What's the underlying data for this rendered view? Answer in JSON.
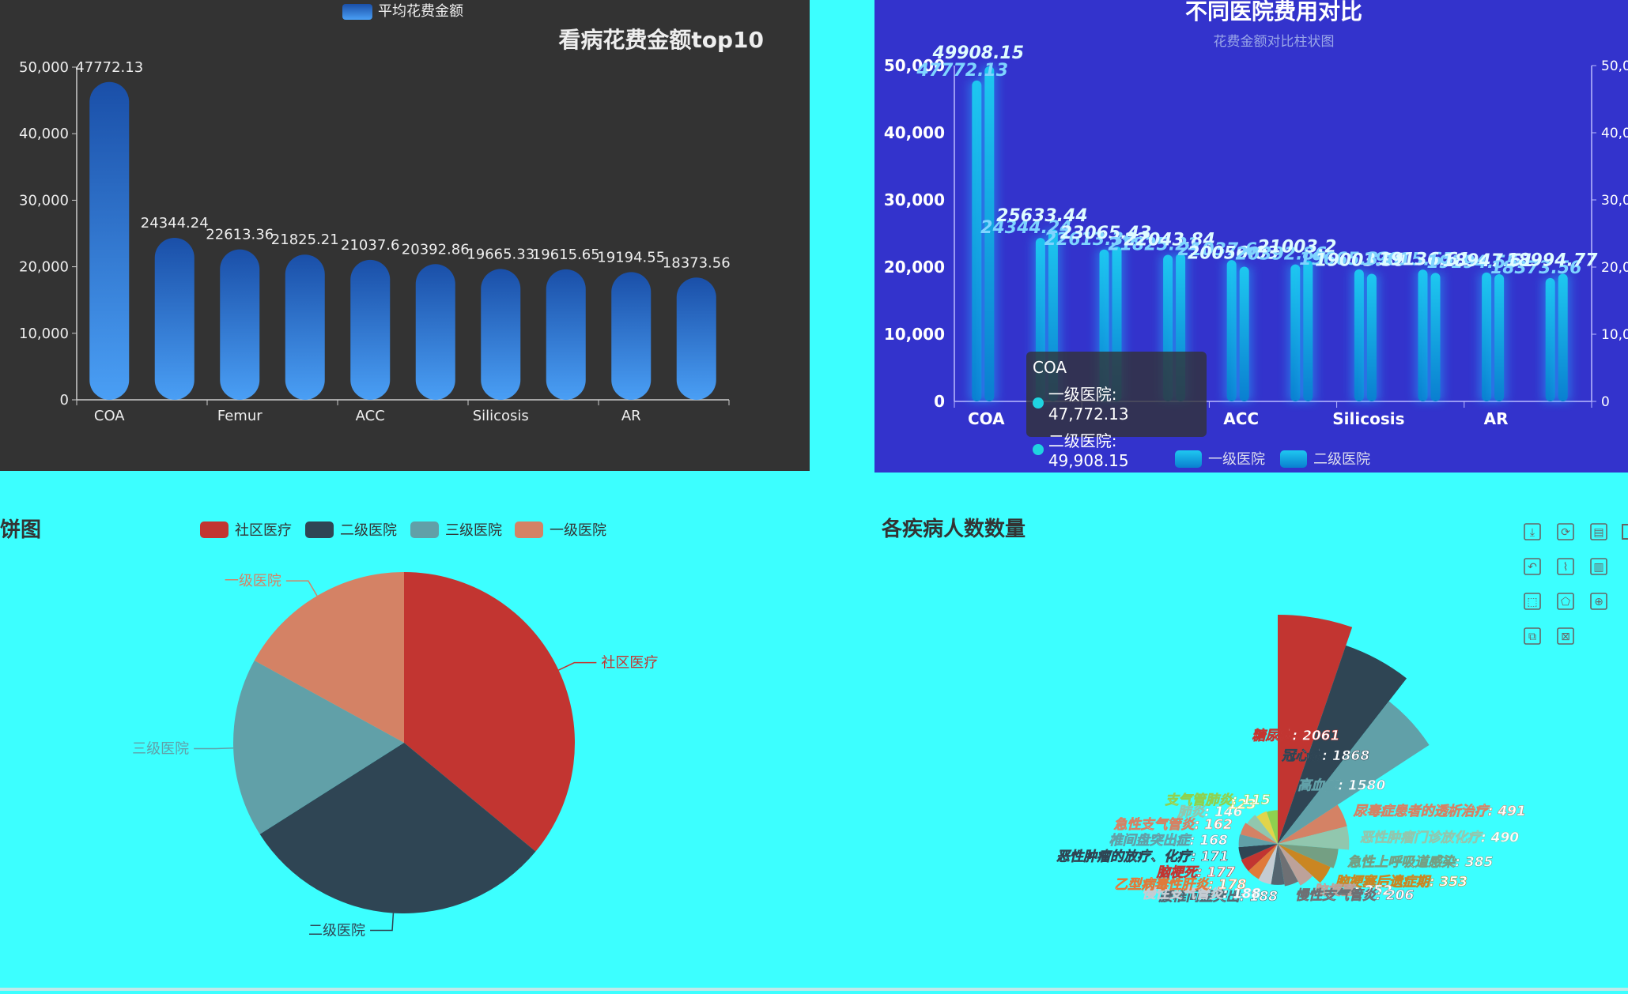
{
  "panel1": {
    "title": "看病花费金额top10",
    "legend": "平均花费金额",
    "chart_data": {
      "type": "bar",
      "categories": [
        "COA",
        "",
        "Femur",
        "",
        "ACC",
        "",
        "Silicosis",
        "",
        "AR",
        ""
      ],
      "values": [
        47772.13,
        24344.24,
        22613.36,
        21825.21,
        21037.6,
        20392.86,
        19665.33,
        19615.65,
        19194.55,
        18373.56
      ],
      "labels": [
        "47772.13",
        "24344.24",
        "22613.36",
        "21825.21",
        "21037.6",
        "20392.86",
        "19665.33",
        "19615.65",
        "19194.55",
        "18373.56"
      ],
      "ylim": [
        0,
        50000
      ],
      "yticks": [
        "0",
        "10,000",
        "20,000",
        "30,000",
        "40,000",
        "50,000"
      ],
      "colors": {
        "top": "#1a4fa8",
        "bottom": "#4a9ff5"
      }
    }
  },
  "panel2": {
    "title": "不同医院费用对比",
    "subtitle": "花费金额对比柱状图",
    "legend": [
      "一级医院",
      "二级医院"
    ],
    "chart_data": {
      "type": "bar",
      "categories": [
        "COA",
        "",
        "",
        "",
        "ACC",
        "",
        "Silicosis",
        "",
        "AR",
        ""
      ],
      "series": [
        {
          "name": "一级医院",
          "values": [
            47772.13,
            24344.24,
            22613.36,
            21825.21,
            21037.6,
            20392.86,
            19665.33,
            19615.65,
            19194.55,
            18373.56
          ]
        },
        {
          "name": "二级医院",
          "values": [
            49908.15,
            25633.44,
            23065.43,
            22043.84,
            20056.03,
            21003.2,
            19003.39,
            19136.61,
            18947.51,
            18994.77
          ]
        }
      ],
      "labels1": [
        "47772.13",
        "24344.24",
        "22613.36",
        "21825.21",
        "21037.6",
        "20392.86",
        "19665.33",
        "19615.65",
        "19194.55",
        "18373.56"
      ],
      "labels2": [
        "49908.15",
        "25633.44",
        "23065.43",
        "22043.84",
        "20056.03",
        "21003.2",
        "19003.39",
        "19136.61",
        "18947.51",
        "18994.77"
      ],
      "ylim": [
        0,
        50000
      ],
      "yticks": [
        "0",
        "10,000",
        "20,000",
        "30,000",
        "40,000",
        "50,000"
      ],
      "yticks_right": [
        "0",
        "10,0",
        "20,0",
        "30,0",
        "40,0",
        "50,0"
      ],
      "colors": {
        "bar": "#1ec8f0",
        "bar_dark": "#0a7fd0",
        "label1": "#7fd4ff",
        "label2": "#dffcff"
      }
    },
    "tooltip": {
      "title": "COA",
      "row1": "一级医院: 47,772.13",
      "row2": "二级医院: 49,908.15"
    }
  },
  "panel3": {
    "title": "饼图",
    "legend": [
      "社区医疗",
      "二级医院",
      "三级医院",
      "一级医院"
    ],
    "chart_data": {
      "type": "pie",
      "slices": [
        {
          "name": "社区医疗",
          "value": 36,
          "color": "#c23531"
        },
        {
          "name": "二级医院",
          "value": 30,
          "color": "#2f4554"
        },
        {
          "name": "三级医院",
          "value": 17,
          "color": "#61a0a8"
        },
        {
          "name": "一级医院",
          "value": 17,
          "color": "#d48265"
        }
      ]
    }
  },
  "panel4": {
    "title": "各疾病人数数量",
    "chart_data": {
      "type": "pie",
      "rose": true,
      "slices": [
        {
          "name": "糖尿病",
          "value": 2061,
          "label": "糖尿病: 2061",
          "color": "#c23531"
        },
        {
          "name": "冠心病",
          "value": 1868,
          "label": "冠心病: 1868",
          "color": "#2f4554"
        },
        {
          "name": "高血压",
          "value": 1580,
          "label": "高血压: 1580",
          "color": "#61a0a8"
        },
        {
          "name": "尿毒症患者的透析治疗",
          "value": 491,
          "label": "尿毒症患者的透析治疗: 491",
          "color": "#d48265"
        },
        {
          "name": "恶性肿瘤门诊放化疗",
          "value": 490,
          "label": "恶性肿瘤门诊放化疗: 490",
          "color": "#91c7ae"
        },
        {
          "name": "急性上呼吸道感染",
          "value": 385,
          "label": "急性上呼吸道感染: 385",
          "color": "#749f83"
        },
        {
          "name": "脑梗塞后遗症期",
          "value": 353,
          "label": "脑梗塞后遗症期: 353",
          "color": "#ca8622"
        },
        {
          "name": "脑梗塞",
          "value": 252,
          "label": "脑梗塞: 252",
          "color": "#bda29a"
        },
        {
          "name": "慢性支气管炎",
          "value": 206,
          "label": "慢性支气管炎: 206",
          "color": "#6e7074"
        },
        {
          "name": "腰椎间盘突出",
          "value": 188,
          "label": "腰椎间盘突出: 188",
          "color": "#546570"
        },
        {
          "name": "慢性支气管炎",
          "value": 188,
          "label": "慢性支气管炎: 188",
          "color": "#c4ccd3"
        },
        {
          "name": "乙型病毒性肝炎",
          "value": 178,
          "label": "乙型病毒性肝炎: 178",
          "color": "#e07a3a"
        },
        {
          "name": "脑梗死",
          "value": 177,
          "label": "脑梗死: 177",
          "color": "#c23531"
        },
        {
          "name": "恶性肿瘤的放疗、化疗",
          "value": 171,
          "label": "恶性肿瘤的放疗、化疗: 171",
          "color": "#2f4554"
        },
        {
          "name": "椎间盘突出症",
          "value": 168,
          "label": "椎间盘突出症: 168",
          "color": "#61a0a8"
        },
        {
          "name": "急性支气管炎",
          "value": 162,
          "label": "急性支气管炎: 162",
          "color": "#d48265"
        },
        {
          "name": "肺炎",
          "value": 146,
          "label": "肺炎: 146",
          "color": "#91c7ae"
        },
        {
          "name": "",
          "value": 123,
          "label": "123",
          "color": "#e2d44a"
        },
        {
          "name": "支气管肺炎",
          "value": 115,
          "label": "支气管肺炎: 115",
          "color": "#8fd14f"
        }
      ]
    },
    "toolbar": [
      "download-icon",
      "refresh-icon",
      "data-view-icon",
      "more-icon",
      "restore-icon",
      "line-icon",
      "bar-icon",
      "rect-select-icon",
      "polygon-select-icon",
      "keep-select-icon",
      "clear-select-icon",
      "zoom-icon",
      "zoom-reset-icon"
    ]
  }
}
